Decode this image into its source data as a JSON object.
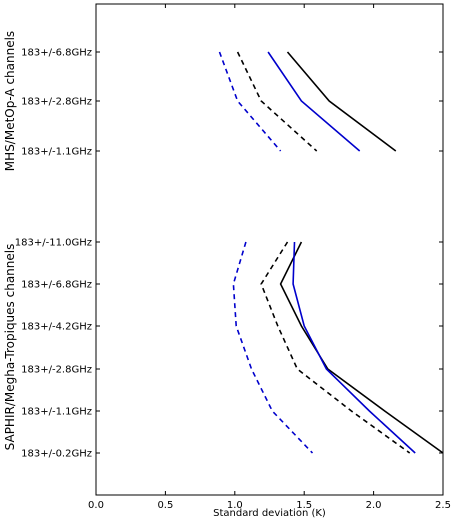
{
  "chart_data": {
    "type": "line",
    "title": "",
    "xlabel": "Standard deviation (K)",
    "ylabel": "",
    "xlim": [
      0.0,
      2.5
    ],
    "x_ticks": [
      0.0,
      0.5,
      1.0,
      1.5,
      2.0,
      2.5
    ],
    "x_tick_labels": [
      "0.0",
      "0.5",
      "1.0",
      "1.5",
      "2.0",
      "2.5"
    ],
    "grid": false,
    "legend": "none",
    "groups": [
      {
        "label": "MHS/MetOp-A channels",
        "channels": [
          "183+/-6.8GHz",
          "183+/-2.8GHz",
          "183+/-1.1GHz"
        ],
        "series": [
          {
            "color": "#000000",
            "dash": "solid",
            "values": [
              1.38,
              1.68,
              2.16
            ]
          },
          {
            "color": "#0000cc",
            "dash": "solid",
            "values": [
              1.24,
              1.48,
              1.9
            ]
          },
          {
            "color": "#000000",
            "dash": "dashed",
            "values": [
              1.02,
              1.19,
              1.59
            ]
          },
          {
            "color": "#0000cc",
            "dash": "dashed",
            "values": [
              0.89,
              1.02,
              1.33
            ]
          }
        ]
      },
      {
        "label": "SAPHIR/Megha-Tropiques channels",
        "channels": [
          "183+/-11.0GHz",
          "183+/-6.8GHz",
          "183+/-4.2GHz",
          "183+/-2.8GHz",
          "183+/-1.1GHz",
          "183+/-0.2GHz"
        ],
        "series": [
          {
            "color": "#000000",
            "dash": "solid",
            "values": [
              1.48,
              1.33,
              1.48,
              1.67,
              2.08,
              2.5
            ]
          },
          {
            "color": "#0000cc",
            "dash": "solid",
            "values": [
              1.43,
              1.42,
              1.5,
              1.66,
              1.97,
              2.3
            ]
          },
          {
            "color": "#000000",
            "dash": "dashed",
            "values": [
              1.38,
              1.19,
              1.31,
              1.45,
              1.84,
              2.26
            ]
          },
          {
            "color": "#0000cc",
            "dash": "dashed",
            "values": [
              1.08,
              0.99,
              1.01,
              1.12,
              1.27,
              1.56
            ]
          }
        ]
      }
    ]
  }
}
